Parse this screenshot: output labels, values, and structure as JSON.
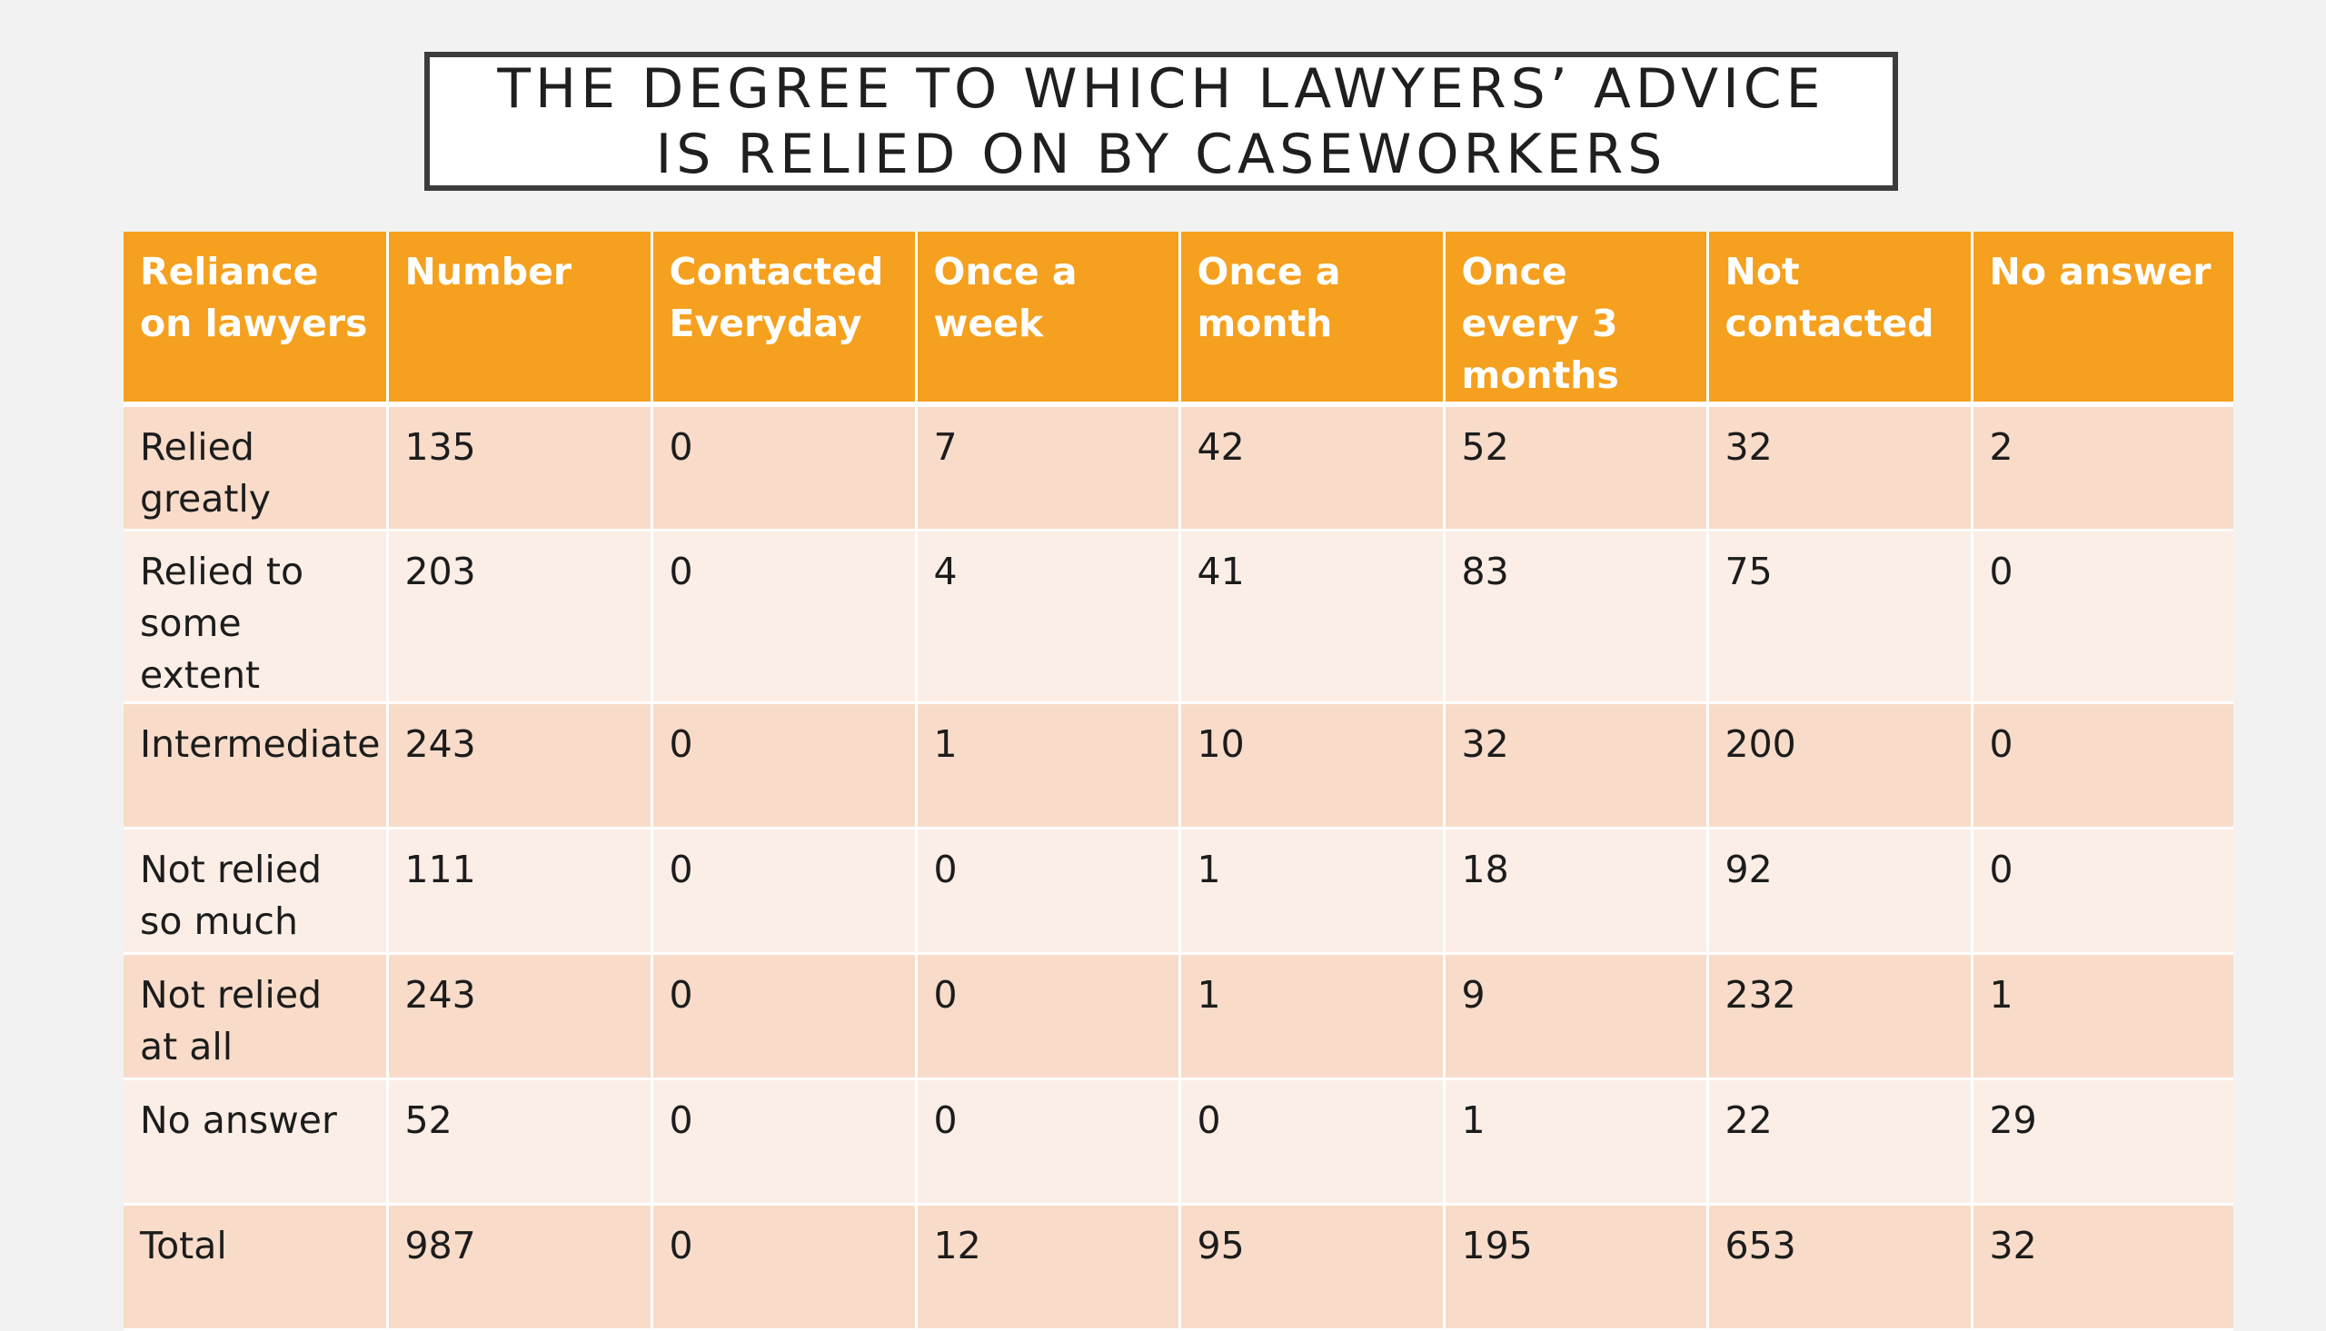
{
  "slide": {
    "title_line_1": "THE DEGREE TO WHICH LAWYERS’ ADVICE",
    "title_line_2": "IS RELIED ON BY CASEWORKERS"
  },
  "table": {
    "headers": [
      "Reliance on lawyers",
      "Number",
      "Contacted Everyday",
      "Once a week",
      "Once a month",
      "Once every 3 months",
      "Not contacted",
      "No answer"
    ],
    "rows": [
      [
        "Relied greatly",
        "135",
        "0",
        "7",
        "42",
        "52",
        "32",
        "2"
      ],
      [
        "Relied to some extent",
        "203",
        "0",
        "4",
        "41",
        "83",
        "75",
        "0"
      ],
      [
        "Intermediate",
        "243",
        "0",
        "1",
        "10",
        "32",
        "200",
        "0"
      ],
      [
        "Not relied so much",
        "111",
        "0",
        "0",
        "1",
        "18",
        "92",
        "0"
      ],
      [
        "Not relied at all",
        "243",
        "0",
        "0",
        "1",
        "9",
        "232",
        "1"
      ],
      [
        "No answer",
        "52",
        "0",
        "0",
        "0",
        "1",
        "22",
        "29"
      ],
      [
        "Total",
        "987",
        "0",
        "12",
        "95",
        "195",
        "653",
        "32"
      ]
    ]
  },
  "colors": {
    "header_background": "#f5a01e",
    "row_odd": "#f8dcc9",
    "row_even": "#fbeee6",
    "page_background": "#f2f2f2"
  }
}
